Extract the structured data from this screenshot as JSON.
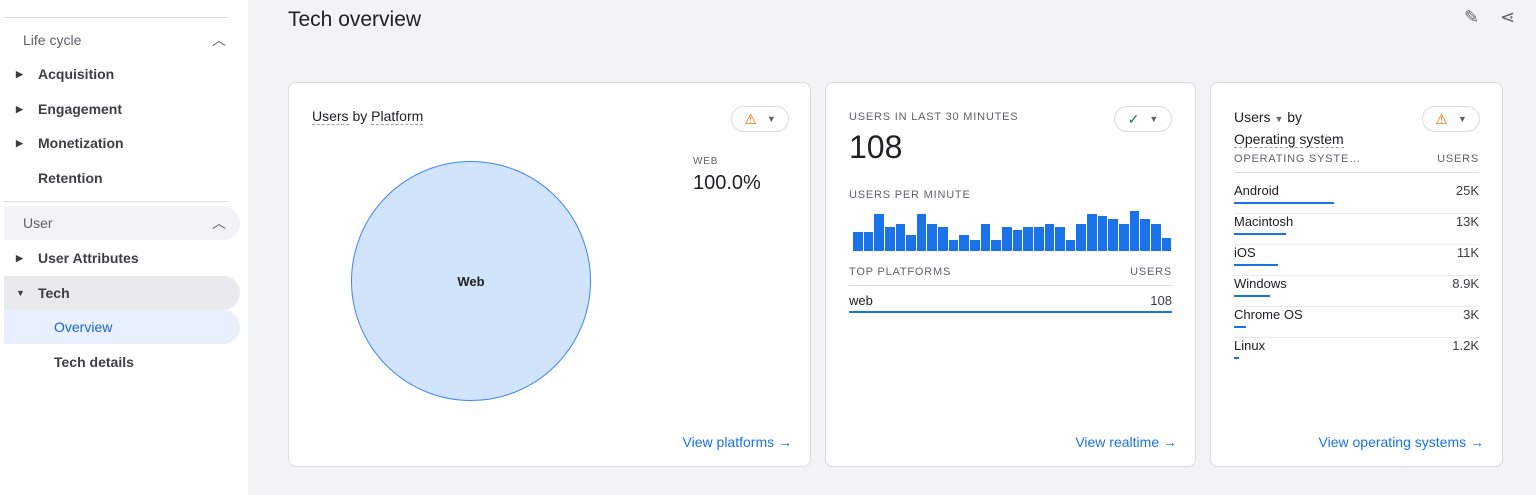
{
  "sidebar": {
    "sections": [
      {
        "label": "Life cycle",
        "items": [
          {
            "label": "Acquisition",
            "caret": "right"
          },
          {
            "label": "Engagement",
            "caret": "right"
          },
          {
            "label": "Monetization",
            "caret": "right"
          },
          {
            "label": "Retention"
          }
        ]
      },
      {
        "label": "User",
        "items": [
          {
            "label": "User Attributes",
            "caret": "right"
          },
          {
            "label": "Tech",
            "caret": "down"
          },
          {
            "label": "Overview",
            "selected": true
          },
          {
            "label": "Tech details"
          }
        ]
      }
    ]
  },
  "header": {
    "title": "Tech overview",
    "icons": [
      "edit-report-icon",
      "share-icon"
    ]
  },
  "platform_card": {
    "title_metric": "Users",
    "title_by": "by",
    "title_dim": "Platform",
    "status": "warning",
    "legend_label": "WEB",
    "legend_value": "100.0%",
    "slice_label": "Web",
    "share": 100,
    "link": "View platforms",
    "color": "#d2e3fc"
  },
  "realtime_card": {
    "label": "USERS IN LAST 30 MINUTES",
    "value": "108",
    "status": "ok",
    "per_minute_label": "USERS PER MINUTE",
    "per_minute": [
      7,
      7,
      14,
      9,
      10,
      6,
      14,
      10,
      9,
      4,
      6,
      4,
      10,
      4,
      9,
      8,
      9,
      9,
      10,
      9,
      4,
      10,
      14,
      13,
      12,
      10,
      15,
      12,
      10,
      5
    ],
    "table_header": [
      "TOP PLATFORMS",
      "USERS"
    ],
    "rows": [
      {
        "name": "web",
        "value": "108"
      }
    ],
    "link": "View realtime",
    "accent": "#1a73e8"
  },
  "os_card": {
    "title_metric": "Users",
    "title_by": "by",
    "title_dim": "Operating system",
    "status": "warning",
    "headers": [
      "OPERATING SYSTE…",
      "USERS"
    ],
    "rows": [
      {
        "name": "Android",
        "value": "25K",
        "n": 25000
      },
      {
        "name": "Macintosh",
        "value": "13K",
        "n": 13000
      },
      {
        "name": "iOS",
        "value": "11K",
        "n": 11000
      },
      {
        "name": "Windows",
        "value": "8.9K",
        "n": 8900
      },
      {
        "name": "Chrome OS",
        "value": "3K",
        "n": 3000
      },
      {
        "name": "Linux",
        "value": "1.2K",
        "n": 1200
      }
    ],
    "link": "View operating systems"
  }
}
